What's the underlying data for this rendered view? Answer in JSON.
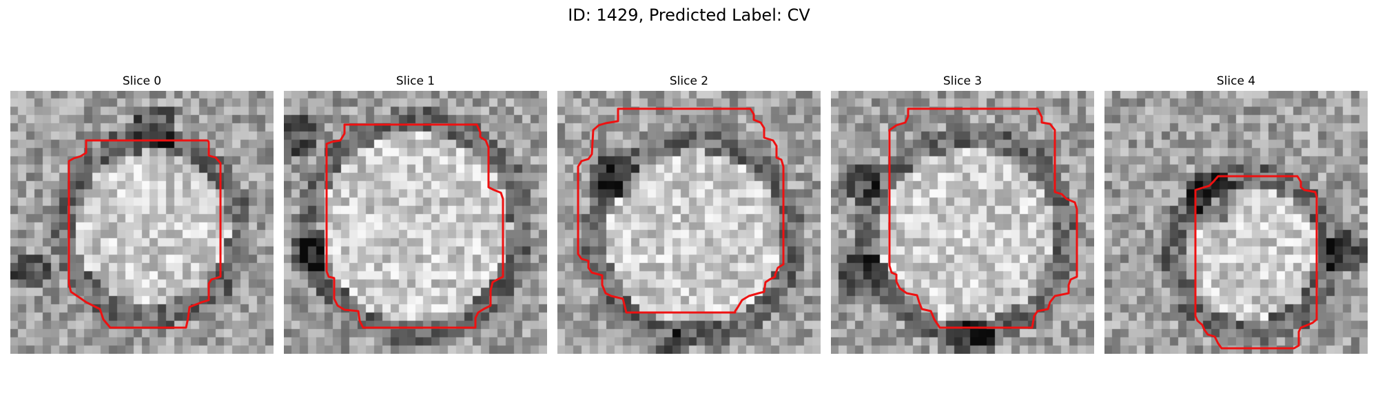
{
  "figure": {
    "title": "ID: 1429, Predicted Label: CV"
  },
  "slices": [
    {
      "title": "Slice 0"
    },
    {
      "title": "Slice 1"
    },
    {
      "title": "Slice 2"
    },
    {
      "title": "Slice 3"
    },
    {
      "title": "Slice 4"
    }
  ],
  "colors": {
    "contour": "#ee1111",
    "background": "#ffffff"
  }
}
